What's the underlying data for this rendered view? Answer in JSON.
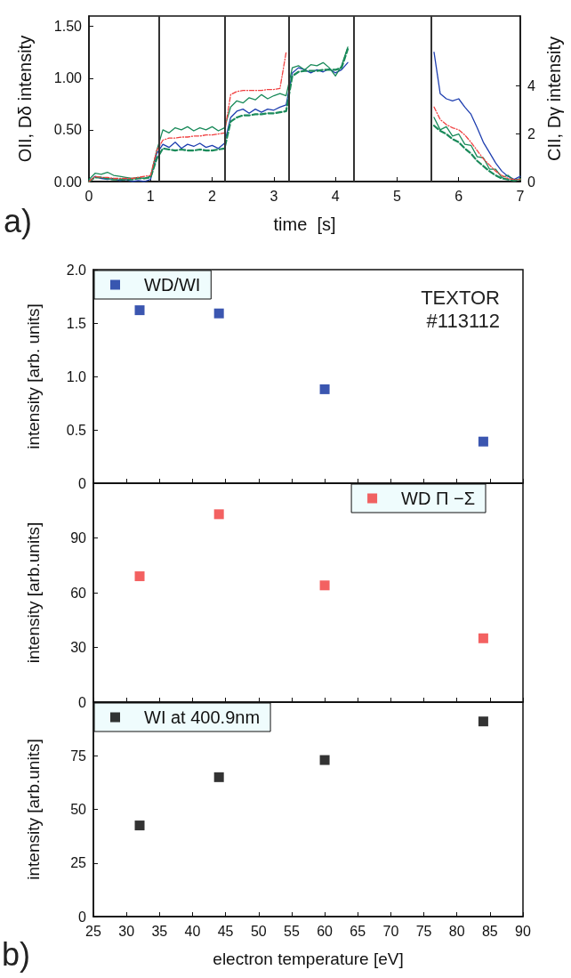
{
  "chart_data": [
    {
      "type": "line",
      "xlabel": "time  [s]",
      "ylabel": "OII, Dδ intensity",
      "y2label": "CII, Dγ intensity",
      "annotations": [
        "a)"
      ],
      "x": [
        0,
        0.1,
        0.2,
        0.3,
        0.4,
        0.5,
        0.6,
        0.7,
        0.8,
        0.9,
        1,
        1.1,
        1.2,
        1.3,
        1.4,
        1.5,
        1.6,
        1.7,
        1.8,
        1.9,
        2,
        2.1,
        2.2,
        2.3,
        2.4,
        2.5,
        2.6,
        2.7,
        2.8,
        2.9,
        3,
        3.1,
        3.2,
        3.3,
        3.4,
        3.5,
        3.6,
        3.7,
        3.8,
        3.9,
        4,
        4.1,
        4.2,
        4.3,
        4.4,
        4.5,
        4.6,
        4.7,
        4.8,
        4.9,
        5,
        5.1,
        5.2,
        5.3,
        5.4,
        5.5,
        5.6,
        5.7,
        5.8,
        5.9,
        6,
        6.1,
        6.2,
        6.3,
        6.4,
        6.5,
        6.6,
        6.7,
        6.8,
        6.9,
        7
      ],
      "series": [
        {
          "color": "#1f3fb0",
          "line_style": "solid",
          "values": [
            0,
            0.05,
            0.03,
            0.02,
            0.03,
            0.01,
            0.02,
            0,
            0.01,
            0,
            0.02,
            0.27,
            0.36,
            0.33,
            0.38,
            0.32,
            0.36,
            0.34,
            0.37,
            0.33,
            0.35,
            0.32,
            0.37,
            0.62,
            0.68,
            0.7,
            0.66,
            0.7,
            0.67,
            0.7,
            0.69,
            0.72,
            0.74,
            1.05,
            1.1,
            1.08,
            1.05,
            1.08,
            1.06,
            1.09,
            1.05,
            1.08,
            1.15,
            null,
            null,
            null,
            null,
            null,
            null,
            null,
            null,
            null,
            null,
            null,
            null,
            null,
            1.25,
            0.85,
            0.8,
            0.78,
            0.8,
            0.72,
            0.65,
            0.52,
            0.38,
            0.28,
            0.18,
            0.1,
            0.05,
            0.02,
            0.05
          ]
        },
        {
          "color": "#1a8a5a",
          "line_style": "solid",
          "values": [
            0.02,
            0.08,
            0.07,
            0.09,
            0.06,
            0.05,
            0.04,
            0.03,
            0.04,
            0.03,
            0.05,
            0.3,
            0.5,
            0.47,
            0.52,
            0.5,
            0.53,
            0.49,
            0.52,
            0.5,
            0.53,
            0.49,
            0.52,
            0.72,
            0.78,
            0.76,
            0.81,
            0.79,
            0.84,
            0.8,
            0.83,
            0.85,
            0.83,
            1.1,
            1.12,
            1.08,
            1.13,
            1.12,
            1.15,
            1.1,
            1.02,
            1.12,
            1.3,
            null,
            null,
            null,
            null,
            null,
            null,
            null,
            null,
            null,
            null,
            null,
            null,
            null,
            0.62,
            0.5,
            0.53,
            0.44,
            0.46,
            0.36,
            0.35,
            0.24,
            0.23,
            0.12,
            0.12,
            0.04,
            0.06,
            0.01,
            0.03
          ]
        },
        {
          "color": "#1a8a5a",
          "line_style": "dashed",
          "values": [
            0,
            0.04,
            0.04,
            0.03,
            0.02,
            0.02,
            0.02,
            0.02,
            0.03,
            0.03,
            0.04,
            0.22,
            0.32,
            0.31,
            0.3,
            0.31,
            0.3,
            0.3,
            0.31,
            0.3,
            0.3,
            0.31,
            0.32,
            0.58,
            0.62,
            0.64,
            0.64,
            0.65,
            0.65,
            0.66,
            0.66,
            0.67,
            0.68,
            1.02,
            1.06,
            1.07,
            1.07,
            1.07,
            1.08,
            1.08,
            1.08,
            1.1,
            1.28,
            null,
            null,
            null,
            null,
            null,
            null,
            null,
            null,
            null,
            null,
            null,
            null,
            null,
            0.54,
            0.49,
            0.46,
            0.41,
            0.38,
            0.32,
            0.27,
            0.2,
            0.15,
            0.1,
            0.06,
            0.03,
            0.02,
            0.01,
            0.02
          ]
        },
        {
          "color": "#f04040",
          "line_style": "dotted",
          "values": [
            0,
            0.05,
            0.04,
            0.04,
            0.03,
            0.03,
            0.03,
            0.03,
            0.04,
            0.05,
            0.06,
            0.3,
            0.4,
            0.42,
            0.42,
            0.43,
            0.43,
            0.44,
            0.44,
            0.45,
            0.45,
            0.46,
            0.47,
            0.84,
            0.87,
            0.88,
            0.88,
            0.88,
            0.88,
            0.89,
            0.89,
            0.9,
            1.25,
            null,
            null,
            null,
            null,
            null,
            null,
            null,
            null,
            null,
            null,
            null,
            null,
            null,
            null,
            null,
            null,
            null,
            null,
            null,
            null,
            null,
            null,
            null,
            0.72,
            0.6,
            0.55,
            0.52,
            0.5,
            0.45,
            0.38,
            0.3,
            0.22,
            0.16,
            0.1,
            0.06,
            0.03,
            0.02,
            0.02
          ]
        }
      ],
      "ref_lines": [
        {
          "axis": "x",
          "value": 1.13,
          "color": "#333333"
        },
        {
          "axis": "x",
          "value": 2.2,
          "color": "#333333"
        },
        {
          "axis": "x",
          "value": 3.25,
          "color": "#333333"
        },
        {
          "axis": "x",
          "value": 4.3,
          "color": "#333333"
        },
        {
          "axis": "x",
          "value": 5.55,
          "color": "#333333"
        }
      ],
      "xlim": [
        0,
        7
      ],
      "xticks": [
        0,
        1,
        2,
        3,
        4,
        5,
        6,
        7
      ],
      "ylim": [
        0,
        1.6
      ],
      "yticks": [
        {
          "value": 0,
          "label": "0.00"
        },
        {
          "value": 0.5,
          "label": "0.50"
        },
        {
          "value": 1,
          "label": "1.00"
        },
        {
          "value": 1.5,
          "label": "1.50"
        }
      ],
      "y2lim": [
        0,
        6.9
      ],
      "y2ticks": [
        0,
        2,
        4
      ],
      "grid": false,
      "marker": "none",
      "legend": false
    },
    {
      "type": "scatter",
      "ylabel": "intensity [arb. units]",
      "annotations": [
        "TEXTOR #113112"
      ],
      "marker": "square",
      "legend": "top left",
      "tick_labels": "y",
      "grid": false,
      "x": [
        32,
        44,
        60,
        84
      ],
      "series": [
        {
          "name": "WD/WI",
          "color": "#0a2c9c",
          "values": [
            1.62,
            1.59,
            0.88,
            0.39
          ]
        }
      ],
      "xlim": [
        25,
        90
      ],
      "xticks": [
        25,
        30,
        35,
        40,
        45,
        50,
        55,
        60,
        65,
        70,
        75,
        80,
        85,
        90
      ],
      "ylim": [
        0,
        2
      ],
      "yticks": [
        0,
        0.5,
        {
          "value": 1,
          "label": "1.0"
        },
        1.5,
        {
          "value": 2,
          "label": "2.0"
        }
      ]
    },
    {
      "type": "scatter",
      "ylabel": "intensity [arb.units]",
      "marker": "square",
      "legend": "top right",
      "tick_labels": "y",
      "grid": false,
      "x": [
        32,
        44,
        60,
        84
      ],
      "series": [
        {
          "name": "WD Π −Σ",
          "color": "#f03a3a",
          "values": [
            69,
            103,
            64,
            35
          ]
        }
      ],
      "xlim": [
        25,
        90
      ],
      "xticks": [
        25,
        30,
        35,
        40,
        45,
        50,
        55,
        60,
        65,
        70,
        75,
        80,
        85,
        90
      ],
      "ylim": [
        0,
        120
      ],
      "yticks": [
        0,
        30,
        60,
        90
      ]
    },
    {
      "type": "scatter",
      "xlabel": "electron temperature [eV]",
      "ylabel": "intensity [arb.units]",
      "annotations": [
        "b)"
      ],
      "marker": "square",
      "legend": "top left",
      "grid": false,
      "x": [
        32,
        44,
        60,
        84
      ],
      "series": [
        {
          "name": "WI at 400.9nm",
          "color": "#000000",
          "values": [
            42.5,
            65,
            73,
            91
          ]
        }
      ],
      "xlim": [
        25,
        90
      ],
      "xticks": [
        25,
        30,
        35,
        40,
        45,
        50,
        55,
        60,
        65,
        70,
        75,
        80,
        85,
        90
      ],
      "ylim": [
        0,
        100
      ],
      "yticks": [
        0,
        25,
        50,
        75
      ]
    }
  ]
}
